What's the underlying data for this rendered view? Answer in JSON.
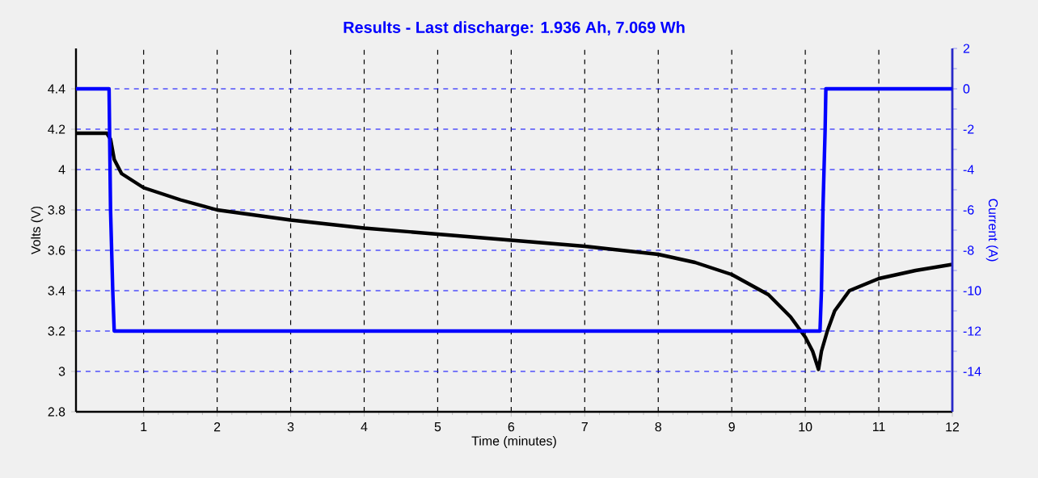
{
  "chart_data": {
    "type": "line",
    "title": "Results - Last discharge: 1.936 Ah, 7.069 Wh",
    "xlabel": "Time (minutes)",
    "ylabel": "Volts (V)",
    "y2label": "Current (A)",
    "xlim": [
      0.08,
      12
    ],
    "xticks": [
      1,
      2,
      3,
      4,
      5,
      6,
      7,
      8,
      9,
      10,
      11,
      12
    ],
    "ylim": [
      2.8,
      4.6
    ],
    "yticks": [
      2.8,
      3,
      3.2,
      3.4,
      3.6,
      3.8,
      4,
      4.2,
      4.4
    ],
    "y2lim": [
      -16,
      2
    ],
    "y2ticks": [
      -14,
      -12,
      -10,
      -8,
      -6,
      -4,
      -2,
      0,
      2
    ],
    "grid": true,
    "line_style": "solid",
    "series": [
      {
        "color": "#000000",
        "x": [
          0.08,
          0.5,
          0.55,
          0.6,
          0.7,
          1,
          1.5,
          2,
          3,
          4,
          5,
          6,
          7,
          8,
          8.5,
          9,
          9.5,
          9.8,
          10,
          10.1,
          10.18,
          10.22,
          10.3,
          10.4,
          10.6,
          11,
          11.5,
          12
        ],
        "values": [
          4.18,
          4.18,
          4.15,
          4.05,
          3.98,
          3.91,
          3.85,
          3.8,
          3.75,
          3.71,
          3.68,
          3.65,
          3.62,
          3.58,
          3.54,
          3.48,
          3.38,
          3.27,
          3.17,
          3.1,
          3.01,
          3.1,
          3.2,
          3.3,
          3.4,
          3.46,
          3.5,
          3.53
        ]
      },
      {
        "color": "#0000ff",
        "axis": "y2",
        "x": [
          0.08,
          0.53,
          0.55,
          0.58,
          0.6,
          10.2,
          10.22,
          10.24,
          10.27,
          10.28,
          12
        ],
        "values": [
          0,
          0,
          -6,
          -10,
          -12,
          -12,
          -10,
          -6,
          -2,
          0,
          0
        ]
      }
    ]
  }
}
